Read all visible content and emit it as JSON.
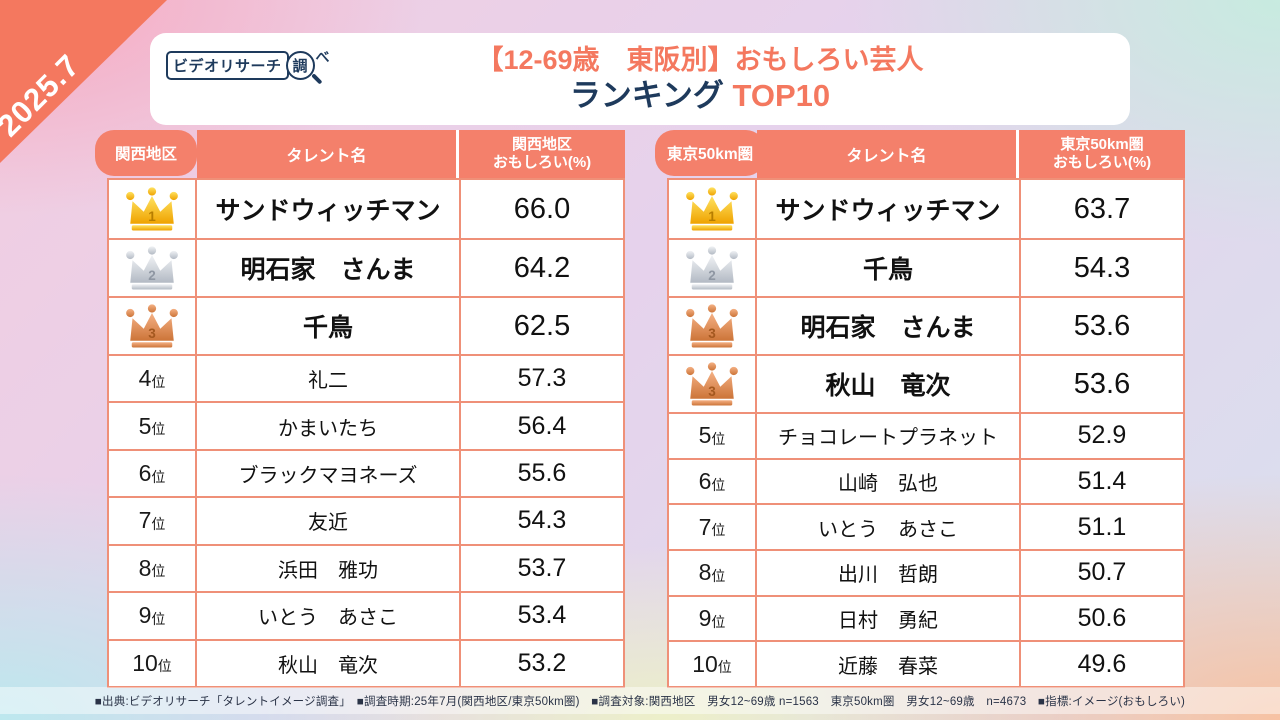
{
  "badge_date": "2025.7",
  "logo": {
    "name_text": "ビデオリサーチ",
    "lens_char": "調",
    "suffix_char": "べ"
  },
  "title": {
    "line1": "【12-69歳　東阪別】おもしろい芸人",
    "line2_left": "ランキング",
    "line2_right": "TOP10"
  },
  "rank_suffix": "位",
  "tables": [
    {
      "tab": "関西地区",
      "columns": {
        "name": "タレント名",
        "value_line1": "関西地区",
        "value_line2": "おもしろい(%)"
      },
      "rows": [
        {
          "rank": "1",
          "crown": "gold",
          "name": "サンドウィッチマン",
          "value": "66.0"
        },
        {
          "rank": "2",
          "crown": "silver",
          "name": "明石家　さんま",
          "value": "64.2"
        },
        {
          "rank": "3",
          "crown": "bronze",
          "name": "千鳥",
          "value": "62.5"
        },
        {
          "rank": "4",
          "crown": null,
          "name": "礼二",
          "value": "57.3"
        },
        {
          "rank": "5",
          "crown": null,
          "name": "かまいたち",
          "value": "56.4"
        },
        {
          "rank": "6",
          "crown": null,
          "name": "ブラックマヨネーズ",
          "value": "55.6"
        },
        {
          "rank": "7",
          "crown": null,
          "name": "友近",
          "value": "54.3"
        },
        {
          "rank": "8",
          "crown": null,
          "name": "浜田　雅功",
          "value": "53.7"
        },
        {
          "rank": "9",
          "crown": null,
          "name": "いとう　あさこ",
          "value": "53.4"
        },
        {
          "rank": "10",
          "crown": null,
          "name": "秋山　竜次",
          "value": "53.2"
        }
      ]
    },
    {
      "tab": "東京50km圏",
      "columns": {
        "name": "タレント名",
        "value_line1": "東京50km圏",
        "value_line2": "おもしろい(%)"
      },
      "rows": [
        {
          "rank": "1",
          "crown": "gold",
          "name": "サンドウィッチマン",
          "value": "63.7"
        },
        {
          "rank": "2",
          "crown": "silver",
          "name": "千鳥",
          "value": "54.3"
        },
        {
          "rank": "3",
          "crown": "bronze",
          "name": "明石家　さんま",
          "value": "53.6"
        },
        {
          "rank": "3",
          "crown": "bronze",
          "name": "秋山　竜次",
          "value": "53.6"
        },
        {
          "rank": "5",
          "crown": null,
          "name": "チョコレートプラネット",
          "value": "52.9"
        },
        {
          "rank": "6",
          "crown": null,
          "name": "山崎　弘也",
          "value": "51.4"
        },
        {
          "rank": "7",
          "crown": null,
          "name": "いとう　あさこ",
          "value": "51.1"
        },
        {
          "rank": "8",
          "crown": null,
          "name": "出川　哲朗",
          "value": "50.7"
        },
        {
          "rank": "9",
          "crown": null,
          "name": "日村　勇紀",
          "value": "50.6"
        },
        {
          "rank": "10",
          "crown": null,
          "name": "近藤　春菜",
          "value": "49.6"
        }
      ]
    }
  ],
  "footer": "■出典:ビデオリサーチ「タレントイメージ調査」　■調査時期:25年7月(関西地区/東京50km圏)　■調査対象:関西地区　男女12~69歳 n=1563　東京50km圏　男女12~69歳　n=4673　■指標:イメージ(おもしろい)",
  "colors": {
    "accent": "#f4785f",
    "header_bg": "#f4806b",
    "table_border": "#ef9078",
    "navy": "#1e3a5c",
    "gold": "#efa200",
    "silver": "#b3bac4",
    "bronze": "#cc7438",
    "crown_num_gold": "#b67d00",
    "crown_num_silver": "#8f97a3",
    "crown_num_bronze": "#a4581f"
  },
  "chart_data": [
    {
      "type": "table",
      "title": "関西地区 おもしろい(%) TOP10 (2025.7)",
      "categories": [
        "サンドウィッチマン",
        "明石家 さんま",
        "千鳥",
        "礼二",
        "かまいたち",
        "ブラックマヨネーズ",
        "友近",
        "浜田 雅功",
        "いとう あさこ",
        "秋山 竜次"
      ],
      "ranks": [
        1,
        2,
        3,
        4,
        5,
        6,
        7,
        8,
        9,
        10
      ],
      "values": [
        66.0,
        64.2,
        62.5,
        57.3,
        56.4,
        55.6,
        54.3,
        53.7,
        53.4,
        53.2
      ],
      "ylabel": "おもしろい(%)"
    },
    {
      "type": "table",
      "title": "東京50km圏 おもしろい(%) TOP10 (2025.7)",
      "categories": [
        "サンドウィッチマン",
        "千鳥",
        "明石家 さんま",
        "秋山 竜次",
        "チョコレートプラネット",
        "山崎 弘也",
        "いとう あさこ",
        "出川 哲朗",
        "日村 勇紀",
        "近藤 春菜"
      ],
      "ranks": [
        1,
        2,
        3,
        3,
        5,
        6,
        7,
        8,
        9,
        10
      ],
      "values": [
        63.7,
        54.3,
        53.6,
        53.6,
        52.9,
        51.4,
        51.1,
        50.7,
        50.6,
        49.6
      ],
      "ylabel": "おもしろい(%)"
    }
  ]
}
